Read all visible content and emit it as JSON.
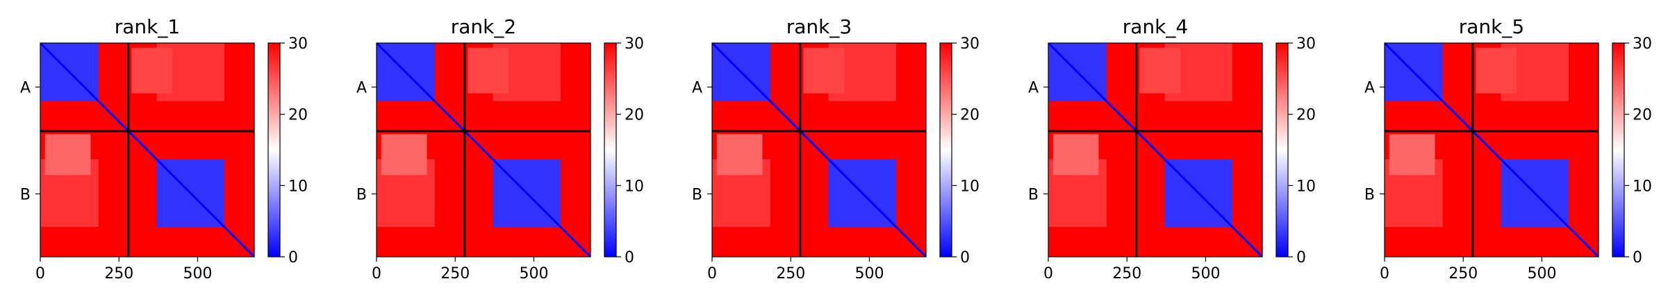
{
  "chart_data": [
    {
      "type": "heatmap",
      "title": "rank_1",
      "x_range": [
        0,
        680
      ],
      "y_range": [
        680,
        0
      ],
      "x_ticks": [
        0,
        250,
        500
      ],
      "x_tick_labels": [
        "0",
        "250",
        "500"
      ],
      "chain_boundary": 280,
      "chains": [
        {
          "label": "A",
          "center": 140
        },
        {
          "label": "B",
          "center": 480
        }
      ],
      "colormap": [
        "#0000ff",
        "#ffffff",
        "#ff0000"
      ],
      "colorbar_range": [
        0,
        30
      ],
      "colorbar_ticks": [
        0,
        10,
        20,
        30
      ],
      "colorbar_tick_labels": [
        "0",
        "10",
        "20",
        "30"
      ],
      "blocks": [
        {
          "x": [
            0,
            185
          ],
          "y": [
            0,
            185
          ],
          "level": 3
        },
        {
          "x": [
            370,
            585
          ],
          "y": [
            370,
            585
          ],
          "level": 3
        },
        {
          "x": [
            0,
            185
          ],
          "y": [
            370,
            585
          ],
          "level": 27
        },
        {
          "x": [
            370,
            585
          ],
          "y": [
            0,
            185
          ],
          "level": 27
        },
        {
          "x": [
            15,
            160
          ],
          "y": [
            290,
            420
          ],
          "level": 24
        },
        {
          "x": [
            290,
            420
          ],
          "y": [
            15,
            160
          ],
          "level": 26
        }
      ],
      "background_level": 30,
      "diagonal_level": 0
    },
    {
      "type": "heatmap",
      "title": "rank_2",
      "x_range": [
        0,
        680
      ],
      "y_range": [
        680,
        0
      ],
      "x_ticks": [
        0,
        250,
        500
      ],
      "x_tick_labels": [
        "0",
        "250",
        "500"
      ],
      "chain_boundary": 280,
      "chains": [
        {
          "label": "A",
          "center": 140
        },
        {
          "label": "B",
          "center": 480
        }
      ],
      "colormap": [
        "#0000ff",
        "#ffffff",
        "#ff0000"
      ],
      "colorbar_range": [
        0,
        30
      ],
      "colorbar_ticks": [
        0,
        10,
        20,
        30
      ],
      "colorbar_tick_labels": [
        "0",
        "10",
        "20",
        "30"
      ],
      "blocks": [
        {
          "x": [
            0,
            185
          ],
          "y": [
            0,
            185
          ],
          "level": 3
        },
        {
          "x": [
            370,
            585
          ],
          "y": [
            370,
            585
          ],
          "level": 3
        },
        {
          "x": [
            0,
            185
          ],
          "y": [
            370,
            585
          ],
          "level": 27
        },
        {
          "x": [
            370,
            585
          ],
          "y": [
            0,
            185
          ],
          "level": 27
        },
        {
          "x": [
            15,
            160
          ],
          "y": [
            290,
            420
          ],
          "level": 24
        },
        {
          "x": [
            290,
            420
          ],
          "y": [
            15,
            160
          ],
          "level": 26
        }
      ],
      "background_level": 30,
      "diagonal_level": 0
    },
    {
      "type": "heatmap",
      "title": "rank_3",
      "x_range": [
        0,
        680
      ],
      "y_range": [
        680,
        0
      ],
      "x_ticks": [
        0,
        250,
        500
      ],
      "x_tick_labels": [
        "0",
        "250",
        "500"
      ],
      "chain_boundary": 280,
      "chains": [
        {
          "label": "A",
          "center": 140
        },
        {
          "label": "B",
          "center": 480
        }
      ],
      "colormap": [
        "#0000ff",
        "#ffffff",
        "#ff0000"
      ],
      "colorbar_range": [
        0,
        30
      ],
      "colorbar_ticks": [
        0,
        10,
        20,
        30
      ],
      "colorbar_tick_labels": [
        "0",
        "10",
        "20",
        "30"
      ],
      "blocks": [
        {
          "x": [
            0,
            185
          ],
          "y": [
            0,
            185
          ],
          "level": 3
        },
        {
          "x": [
            370,
            585
          ],
          "y": [
            370,
            585
          ],
          "level": 3
        },
        {
          "x": [
            0,
            185
          ],
          "y": [
            370,
            585
          ],
          "level": 27
        },
        {
          "x": [
            370,
            585
          ],
          "y": [
            0,
            185
          ],
          "level": 27
        },
        {
          "x": [
            15,
            160
          ],
          "y": [
            290,
            420
          ],
          "level": 24
        },
        {
          "x": [
            290,
            420
          ],
          "y": [
            15,
            160
          ],
          "level": 26
        }
      ],
      "background_level": 30,
      "diagonal_level": 0
    },
    {
      "type": "heatmap",
      "title": "rank_4",
      "x_range": [
        0,
        680
      ],
      "y_range": [
        680,
        0
      ],
      "x_ticks": [
        0,
        250,
        500
      ],
      "x_tick_labels": [
        "0",
        "250",
        "500"
      ],
      "chain_boundary": 280,
      "chains": [
        {
          "label": "A",
          "center": 140
        },
        {
          "label": "B",
          "center": 480
        }
      ],
      "colormap": [
        "#0000ff",
        "#ffffff",
        "#ff0000"
      ],
      "colorbar_range": [
        0,
        30
      ],
      "colorbar_ticks": [
        0,
        10,
        20,
        30
      ],
      "colorbar_tick_labels": [
        "0",
        "10",
        "20",
        "30"
      ],
      "blocks": [
        {
          "x": [
            0,
            185
          ],
          "y": [
            0,
            185
          ],
          "level": 3
        },
        {
          "x": [
            370,
            585
          ],
          "y": [
            370,
            585
          ],
          "level": 3
        },
        {
          "x": [
            0,
            185
          ],
          "y": [
            370,
            585
          ],
          "level": 27
        },
        {
          "x": [
            370,
            585
          ],
          "y": [
            0,
            185
          ],
          "level": 27
        },
        {
          "x": [
            15,
            160
          ],
          "y": [
            290,
            420
          ],
          "level": 24
        },
        {
          "x": [
            290,
            420
          ],
          "y": [
            15,
            160
          ],
          "level": 26
        }
      ],
      "background_level": 30,
      "diagonal_level": 0
    },
    {
      "type": "heatmap",
      "title": "rank_5",
      "x_range": [
        0,
        680
      ],
      "y_range": [
        680,
        0
      ],
      "x_ticks": [
        0,
        250,
        500
      ],
      "x_tick_labels": [
        "0",
        "250",
        "500"
      ],
      "chain_boundary": 280,
      "chains": [
        {
          "label": "A",
          "center": 140
        },
        {
          "label": "B",
          "center": 480
        }
      ],
      "colormap": [
        "#0000ff",
        "#ffffff",
        "#ff0000"
      ],
      "colorbar_range": [
        0,
        30
      ],
      "colorbar_ticks": [
        0,
        10,
        20,
        30
      ],
      "colorbar_tick_labels": [
        "0",
        "10",
        "20",
        "30"
      ],
      "blocks": [
        {
          "x": [
            0,
            185
          ],
          "y": [
            0,
            185
          ],
          "level": 3
        },
        {
          "x": [
            370,
            585
          ],
          "y": [
            370,
            585
          ],
          "level": 3
        },
        {
          "x": [
            0,
            185
          ],
          "y": [
            370,
            585
          ],
          "level": 27
        },
        {
          "x": [
            370,
            585
          ],
          "y": [
            0,
            185
          ],
          "level": 27
        },
        {
          "x": [
            15,
            160
          ],
          "y": [
            290,
            420
          ],
          "level": 24
        },
        {
          "x": [
            290,
            420
          ],
          "y": [
            15,
            160
          ],
          "level": 26
        }
      ],
      "background_level": 30,
      "diagonal_level": 0
    }
  ]
}
